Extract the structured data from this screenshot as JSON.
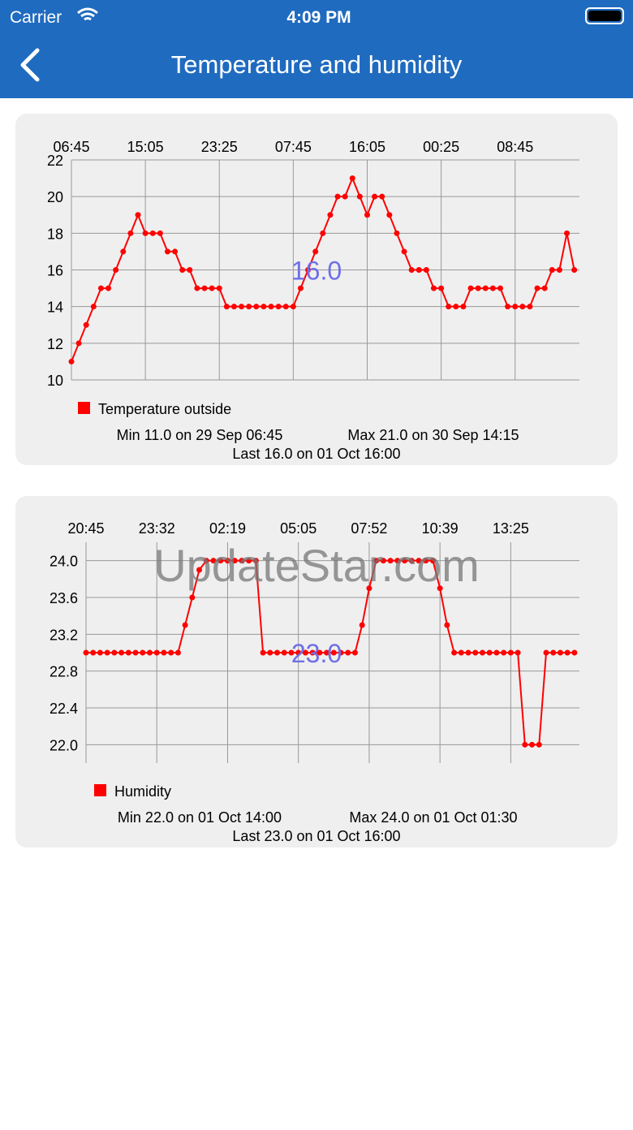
{
  "status_bar": {
    "carrier": "Carrier",
    "time": "4:09 PM"
  },
  "nav": {
    "title": "Temperature and humidity"
  },
  "watermark": "UpdateStar.com",
  "chart_data": [
    {
      "type": "line",
      "categories": [
        "06:45",
        null,
        null,
        null,
        null,
        null,
        null,
        null,
        null,
        null,
        "15:05",
        null,
        null,
        null,
        null,
        null,
        null,
        null,
        null,
        null,
        "23:25",
        null,
        null,
        null,
        null,
        null,
        null,
        null,
        null,
        null,
        "07:45",
        null,
        null,
        null,
        null,
        null,
        null,
        null,
        null,
        null,
        "16:05",
        null,
        null,
        null,
        null,
        null,
        null,
        null,
        null,
        null,
        "00:25",
        null,
        null,
        null,
        null,
        null,
        null,
        null,
        null,
        null,
        "08:45",
        null,
        null,
        null,
        null,
        null,
        null,
        null,
        null
      ],
      "series": [
        {
          "name": "Temperature outside",
          "color": "#ff0000",
          "values": [
            11,
            12,
            13,
            14,
            15,
            15,
            16,
            17,
            18,
            19,
            18,
            18,
            18,
            17,
            17,
            16,
            16,
            15,
            15,
            15,
            15,
            14,
            14,
            14,
            14,
            14,
            14,
            14,
            14,
            14,
            14,
            15,
            16,
            17,
            18,
            19,
            20,
            20,
            21,
            20,
            19,
            20,
            20,
            19,
            18,
            17,
            16,
            16,
            16,
            15,
            15,
            14,
            14,
            14,
            15,
            15,
            15,
            15,
            15,
            14,
            14,
            14,
            14,
            15,
            15,
            16,
            16,
            18,
            16
          ]
        }
      ],
      "ylim": [
        10,
        22
      ],
      "yticks": [
        10,
        12,
        14,
        16,
        18,
        20,
        22
      ],
      "grid": true,
      "center_label": "16.0",
      "min_text": "Min 11.0 on 29 Sep 06:45",
      "max_text": "Max 21.0 on 30 Sep 14:15",
      "last_text": "Last 16.0 on 01 Oct 16:00"
    },
    {
      "type": "line",
      "categories": [
        "20:45",
        null,
        null,
        null,
        null,
        null,
        null,
        null,
        null,
        null,
        "23:32",
        null,
        null,
        null,
        null,
        null,
        null,
        null,
        null,
        null,
        "02:19",
        null,
        null,
        null,
        null,
        null,
        null,
        null,
        null,
        null,
        "05:05",
        null,
        null,
        null,
        null,
        null,
        null,
        null,
        null,
        null,
        "07:52",
        null,
        null,
        null,
        null,
        null,
        null,
        null,
        null,
        null,
        "10:39",
        null,
        null,
        null,
        null,
        null,
        null,
        null,
        null,
        null,
        "13:25",
        null,
        null,
        null,
        null,
        null,
        null,
        null,
        null,
        null
      ],
      "series": [
        {
          "name": "Humidity",
          "color": "#ff0000",
          "values": [
            23,
            23,
            23,
            23,
            23,
            23,
            23,
            23,
            23,
            23,
            23,
            23,
            23,
            23,
            23.3,
            23.6,
            23.9,
            24,
            24,
            24,
            24,
            24,
            24,
            24,
            24,
            23,
            23,
            23,
            23,
            23,
            23,
            23,
            23,
            23,
            23,
            23,
            23,
            23,
            23,
            23.3,
            23.7,
            24,
            24,
            24,
            24,
            24,
            24,
            24,
            24,
            24,
            23.7,
            23.3,
            23,
            23,
            23,
            23,
            23,
            23,
            23,
            23,
            23,
            23,
            22,
            22,
            22,
            23,
            23,
            23,
            23,
            23
          ]
        }
      ],
      "ylim": [
        21.8,
        24.2
      ],
      "yticks": [
        {
          "value": 22,
          "label": "22.0"
        },
        {
          "value": 22.4,
          "label": "22.4"
        },
        {
          "value": 22.8,
          "label": "22.8"
        },
        {
          "value": 23.2,
          "label": "23.2"
        },
        {
          "value": 23.6,
          "label": "23.6"
        },
        {
          "value": 24,
          "label": "24.0"
        }
      ],
      "grid": true,
      "center_label": "23.0",
      "min_text": "Min 22.0 on 01 Oct 14:00",
      "max_text": "Max 24.0 on 01 Oct 01:30",
      "last_text": "Last 23.0 on 01 Oct 16:00"
    }
  ]
}
